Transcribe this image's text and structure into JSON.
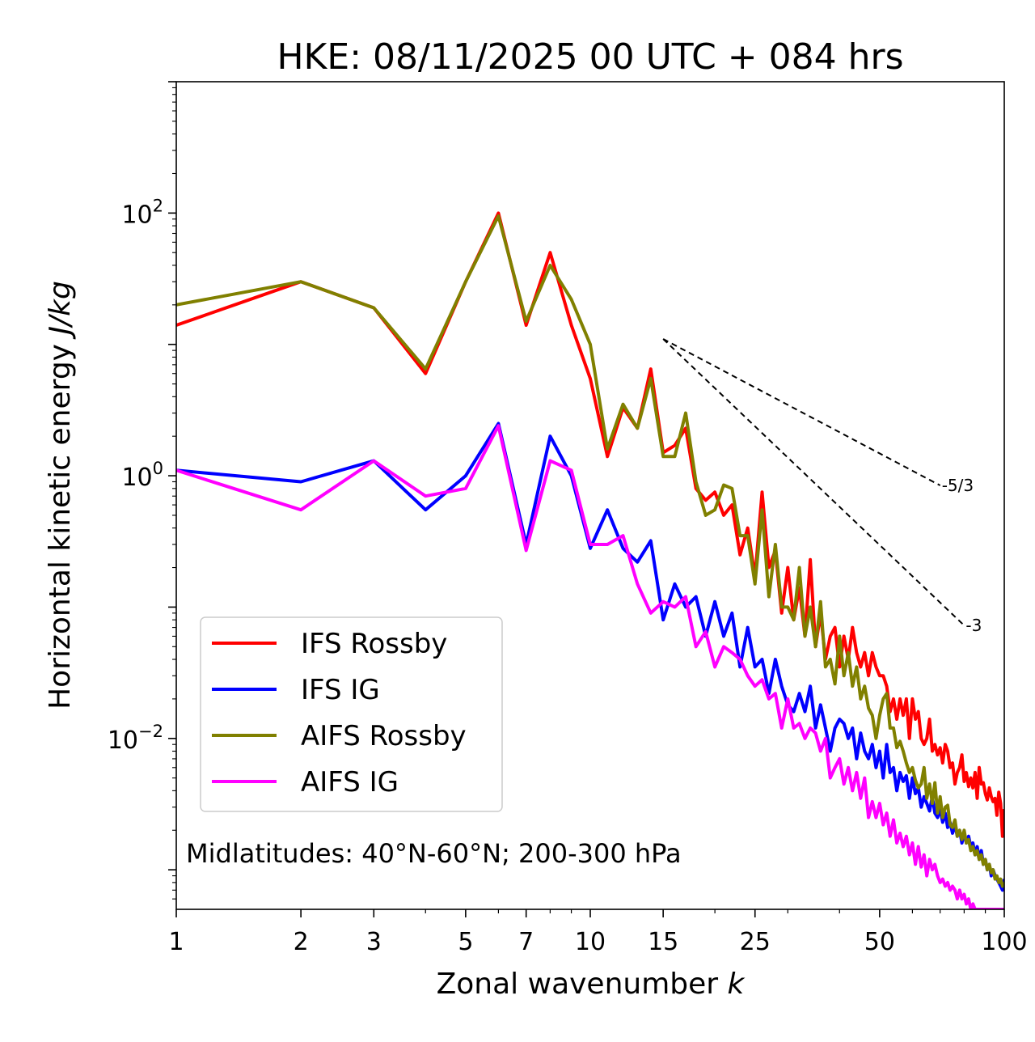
{
  "chart_data": {
    "type": "line",
    "title": "HKE: 08/11/2025 00 UTC + 084 hrs",
    "xlabel": "Zonal wavenumber",
    "xlabel_var": "k",
    "ylabel": "Horizontal kinetic energy",
    "ylabel_unit": "J/kg",
    "xscale": "log",
    "yscale": "log",
    "xlim": [
      1,
      100
    ],
    "ylim": [
      0.0005,
      1000
    ],
    "x_ticks": [
      1,
      2,
      3,
      5,
      7,
      10,
      15,
      25,
      50,
      100
    ],
    "x_tick_labels": [
      "1",
      "2",
      "3",
      "5",
      "7",
      "10",
      "15",
      "25",
      "50",
      "100"
    ],
    "y_ticks": [
      {
        "value": 100,
        "base": "10",
        "exp": "2"
      },
      {
        "value": 1,
        "base": "10",
        "exp": "0"
      },
      {
        "value": 0.01,
        "base": "10",
        "exp": "−2"
      }
    ],
    "legend_position": "lower-left",
    "annotation": "Midlatitudes: 40°N-60°N; 200-300 hPa",
    "reference_lines": [
      {
        "label": "-5/3",
        "slope": -1.6667,
        "x0": 15,
        "y0": 11,
        "x1": 70
      },
      {
        "label": "-3",
        "slope": -3,
        "x0": 15,
        "y0": 11,
        "x1": 80
      }
    ],
    "series": [
      {
        "name": "IFS Rossby",
        "color": "#ff0000",
        "values": [
          14,
          30,
          19,
          6,
          30,
          100,
          14,
          50,
          14,
          5.5,
          1.4,
          3.3,
          2.3,
          6.5,
          1.5,
          1.7,
          2.3,
          0.8,
          0.65,
          0.75,
          0.5,
          0.6,
          0.25,
          0.4,
          0.17,
          0.75,
          0.2,
          0.27,
          0.09,
          0.2,
          0.08,
          0.14,
          0.06,
          0.23,
          0.05,
          0.09,
          0.04,
          0.06,
          0.07,
          0.035,
          0.06,
          0.04,
          0.07,
          0.045,
          0.035,
          0.045,
          0.03,
          0.045,
          0.035,
          0.03,
          0.03,
          0.025,
          0.016,
          0.02,
          0.014,
          0.02,
          0.015,
          0.02,
          0.01,
          0.02,
          0.014,
          0.016,
          0.01,
          0.009,
          0.01,
          0.014,
          0.008,
          0.009,
          0.0075,
          0.0085,
          0.0065,
          0.009,
          0.008,
          0.006,
          0.0065,
          0.0045,
          0.0055,
          0.006,
          0.0075,
          0.0047,
          0.0055,
          0.0043,
          0.005,
          0.0042,
          0.0055,
          0.0035,
          0.006,
          0.0045,
          0.0046,
          0.0038,
          0.0034,
          0.0042,
          0.0036,
          0.0033,
          0.0035,
          0.0026,
          0.0039,
          0.0032,
          0.0018,
          0.0029
        ]
      },
      {
        "name": "IFS IG",
        "color": "#0000ff",
        "values": [
          1.1,
          0.9,
          1.3,
          0.55,
          1.0,
          2.5,
          0.3,
          2.0,
          1.0,
          0.28,
          0.55,
          0.28,
          0.22,
          0.32,
          0.08,
          0.15,
          0.1,
          0.12,
          0.06,
          0.11,
          0.06,
          0.09,
          0.035,
          0.07,
          0.035,
          0.04,
          0.022,
          0.04,
          0.025,
          0.018,
          0.016,
          0.022,
          0.016,
          0.025,
          0.012,
          0.018,
          0.012,
          0.008,
          0.012,
          0.014,
          0.013,
          0.01,
          0.012,
          0.007,
          0.011,
          0.008,
          0.007,
          0.009,
          0.006,
          0.008,
          0.005,
          0.009,
          0.0055,
          0.006,
          0.004,
          0.0055,
          0.0047,
          0.0052,
          0.0035,
          0.005,
          0.0038,
          0.0042,
          0.003,
          0.0036,
          0.0032,
          0.0028,
          0.0036,
          0.0027,
          0.0025,
          0.0029,
          0.0023,
          0.0027,
          0.0021,
          0.0023,
          0.0019,
          0.0022,
          0.0018,
          0.002,
          0.0016,
          0.0019,
          0.0016,
          0.0018,
          0.0015,
          0.0016,
          0.0013,
          0.0015,
          0.0012,
          0.0014,
          0.0011,
          0.0012,
          0.001,
          0.0011,
          0.0009,
          0.001,
          0.0009,
          0.00085,
          0.0008,
          0.00075,
          0.0007,
          0.00085
        ]
      },
      {
        "name": "AIFS Rossby",
        "color": "#808000",
        "values": [
          20,
          30,
          19,
          6.5,
          30,
          95,
          15,
          40,
          22,
          10,
          1.6,
          3.5,
          2.3,
          5.5,
          1.4,
          1.4,
          3.0,
          0.9,
          0.5,
          0.55,
          0.85,
          0.8,
          0.35,
          0.35,
          0.15,
          0.55,
          0.12,
          0.3,
          0.1,
          0.1,
          0.08,
          0.2,
          0.06,
          0.1,
          0.05,
          0.11,
          0.035,
          0.04,
          0.026,
          0.06,
          0.03,
          0.045,
          0.025,
          0.035,
          0.02,
          0.025,
          0.017,
          0.015,
          0.01,
          0.015,
          0.02,
          0.022,
          0.012,
          0.012,
          0.0085,
          0.0095,
          0.008,
          0.0065,
          0.0055,
          0.006,
          0.0048,
          0.0042,
          0.0045,
          0.006,
          0.0035,
          0.0045,
          0.0032,
          0.0046,
          0.0027,
          0.0036,
          0.0025,
          0.003,
          0.0031,
          0.0022,
          0.0021,
          0.0024,
          0.0018,
          0.002,
          0.0017,
          0.002,
          0.0016,
          0.0017,
          0.0014,
          0.0015,
          0.0013,
          0.0014,
          0.0012,
          0.0013,
          0.0011,
          0.0012,
          0.001,
          0.0011,
          0.00095,
          0.001,
          0.00085,
          0.0009,
          0.0008,
          0.00085,
          0.00075,
          0.0008
        ]
      },
      {
        "name": "AIFS IG",
        "color": "#ff00ff",
        "values": [
          1.1,
          0.55,
          1.3,
          0.7,
          0.8,
          2.4,
          0.27,
          1.3,
          1.1,
          0.3,
          0.3,
          0.35,
          0.15,
          0.09,
          0.11,
          0.1,
          0.12,
          0.05,
          0.065,
          0.035,
          0.05,
          0.045,
          0.04,
          0.03,
          0.025,
          0.028,
          0.02,
          0.022,
          0.012,
          0.02,
          0.012,
          0.013,
          0.01,
          0.012,
          0.011,
          0.008,
          0.01,
          0.005,
          0.006,
          0.007,
          0.0045,
          0.006,
          0.004,
          0.0055,
          0.0035,
          0.005,
          0.0025,
          0.0033,
          0.0025,
          0.0032,
          0.0022,
          0.0027,
          0.0018,
          0.0024,
          0.0016,
          0.0019,
          0.0015,
          0.0018,
          0.0013,
          0.0016,
          0.0011,
          0.0015,
          0.00105,
          0.0013,
          0.0009,
          0.0012,
          0.001,
          0.0011,
          0.0009,
          0.0008,
          0.00085,
          0.00075,
          0.0008,
          0.0007,
          0.00075,
          0.0007,
          0.0006,
          0.0007,
          0.0006,
          0.00065,
          0.00055,
          0.0006,
          0.0005,
          0.00055,
          0.0005,
          0.0005,
          0.0005,
          0.0005,
          0.0005,
          0.0005,
          0.0005,
          0.0005,
          0.0005,
          0.0005,
          0.0005,
          0.0005,
          0.0005,
          0.0005,
          0.0005,
          0.0005
        ]
      }
    ]
  }
}
